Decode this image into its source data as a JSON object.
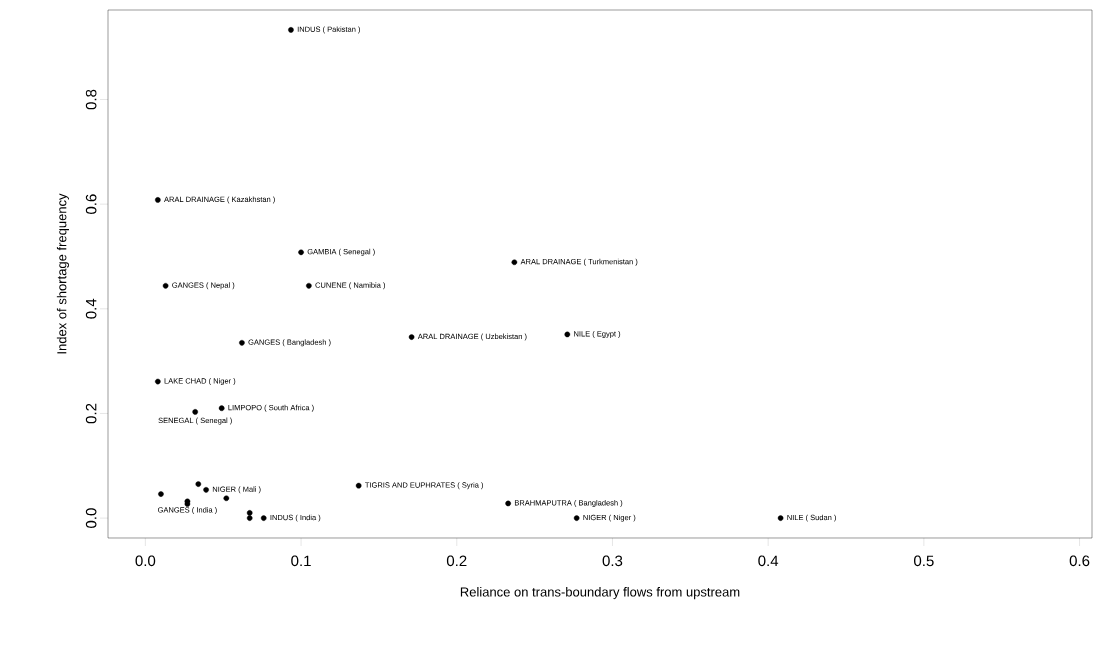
{
  "chart_data": {
    "type": "scatter",
    "xlabel": "Reliance on trans-boundary flows from upstream",
    "ylabel": "Index of shortage frequency",
    "color": "#000000",
    "marker": "circle",
    "x": [
      0.0935,
      0.008,
      0.1,
      0.013,
      0.105,
      0.237,
      0.062,
      0.171,
      0.271,
      0.008,
      0.049,
      0.032,
      0.039,
      0.034,
      0.137,
      0.01,
      0.027,
      0.027,
      0.052,
      0.067,
      0.067,
      0.076,
      0.233,
      0.277,
      0.408
    ],
    "values": [
      0.933,
      0.608,
      0.508,
      0.444,
      0.444,
      0.489,
      0.335,
      0.346,
      0.351,
      0.261,
      0.21,
      0.203,
      0.054,
      0.065,
      0.062,
      0.046,
      0.032,
      0.027,
      0.038,
      0.01,
      0.0,
      0.0,
      0.028,
      0.0,
      0.0
    ],
    "xlim": [
      -0.024,
      0.608
    ],
    "ylim": [
      -0.038,
      0.971
    ],
    "xticks": [
      {
        "value": 0,
        "label": "0.0"
      },
      {
        "value": 0.1,
        "label": "0.1"
      },
      {
        "value": 0.2,
        "label": "0.2"
      },
      {
        "value": 0.3,
        "label": "0.3"
      },
      {
        "value": 0.4,
        "label": "0.4"
      },
      {
        "value": 0.5,
        "label": "0.5"
      },
      {
        "value": 0.6,
        "label": "0.6"
      }
    ],
    "yticks": [
      {
        "value": 0,
        "label": "0.0"
      },
      {
        "value": 0.2,
        "label": "0.2"
      },
      {
        "value": 0.4,
        "label": "0.4"
      },
      {
        "value": 0.6,
        "label": "0.6"
      },
      {
        "value": 0.8,
        "label": "0.8"
      }
    ],
    "annotations": [
      {
        "text": "INDUS ( Pakistan )",
        "x": 0.0935,
        "y": 0.933
      },
      {
        "text": "ARAL DRAINAGE ( Kazakhstan )",
        "x": 0.008,
        "y": 0.608
      },
      {
        "text": "GAMBIA ( Senegal )",
        "x": 0.1,
        "y": 0.508
      },
      {
        "text": "GANGES ( Nepal )",
        "x": 0.013,
        "y": 0.444
      },
      {
        "text": "CUNENE ( Namibia )",
        "x": 0.105,
        "y": 0.444
      },
      {
        "text": "ARAL DRAINAGE ( Turkmenistan )",
        "x": 0.237,
        "y": 0.489
      },
      {
        "text": "GANGES ( Bangladesh )",
        "x": 0.062,
        "y": 0.335
      },
      {
        "text": "ARAL DRAINAGE ( Uzbekistan )",
        "x": 0.171,
        "y": 0.346
      },
      {
        "text": "NILE ( Egypt )",
        "x": 0.271,
        "y": 0.351
      },
      {
        "text": "LAKE CHAD ( Niger )",
        "x": 0.008,
        "y": 0.261
      },
      {
        "text": "LIMPOPO ( South Africa )",
        "x": 0.049,
        "y": 0.21
      },
      {
        "text": "SENEGAL ( Senegal )",
        "x": 0.032,
        "y": 0.203
      },
      {
        "text": "NIGER ( Mali )",
        "x": 0.039,
        "y": 0.054
      },
      {
        "text": "TIGRIS AND EUPHRATES ( Syria )",
        "x": 0.137,
        "y": 0.062
      },
      {
        "text": "GANGES ( India )",
        "x": 0.027,
        "y": 0.032
      },
      {
        "text": "INDUS ( India )",
        "x": 0.076,
        "y": 0.0
      },
      {
        "text": "BRAHMAPUTRA ( Bangladesh )",
        "x": 0.233,
        "y": 0.028
      },
      {
        "text": "NIGER ( Niger )",
        "x": 0.277,
        "y": 0.0
      },
      {
        "text": "NILE ( Sudan )",
        "x": 0.408,
        "y": 0.0
      }
    ]
  }
}
